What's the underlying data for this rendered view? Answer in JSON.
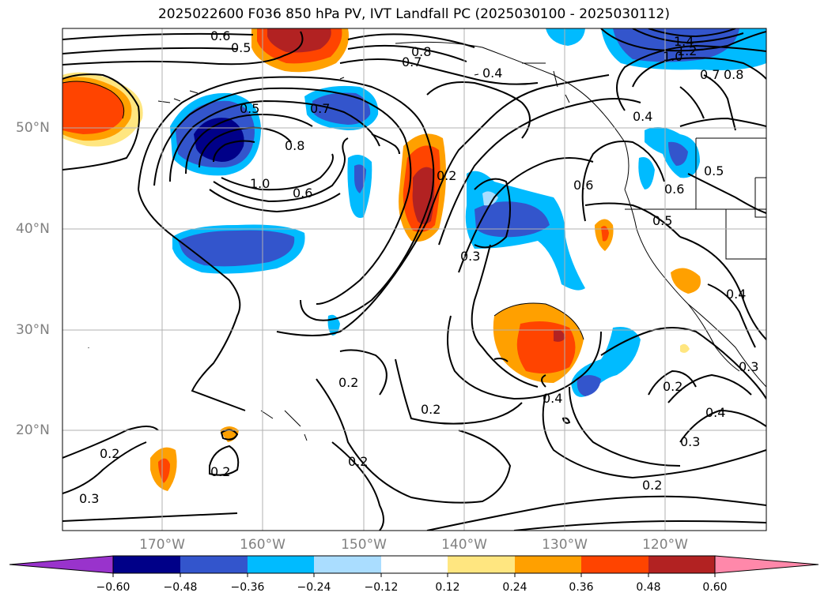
{
  "title": "2025022600 F036 850 hPa PV, IVT Landfall PC (2025030100 - 2025030112)",
  "lat_labels": [
    "50°N",
    "40°N",
    "30°N",
    "20°N"
  ],
  "lon_labels": [
    "170°W",
    "160°W",
    "150°W",
    "140°W",
    "130°W",
    "120°W"
  ],
  "colorbar": {
    "ticks": [
      "−0.60",
      "−0.48",
      "−0.36",
      "−0.24",
      "−0.12",
      "0.12",
      "0.24",
      "0.36",
      "0.48",
      "0.60"
    ],
    "colors": [
      "#9933cc",
      "#000088",
      "#3355cc",
      "#00bbff",
      "#aaddff",
      "#ffffff",
      "#ffe680",
      "#ffa000",
      "#ff4400",
      "#b22222",
      "#ff88aa"
    ]
  },
  "contour_labels": [
    "0.6",
    "0.5",
    "0.8",
    "0.7",
    "0.4",
    "1.4",
    "1.0",
    "1.2",
    "0.7",
    "0.8",
    "0.5",
    "0.7",
    "0.8",
    "1.0",
    "0.6",
    "0.2",
    "0.6",
    "0.4",
    "0.6",
    "0.5",
    "0.5",
    "0.3",
    "0.4",
    "0.2",
    "0.2",
    "0.4",
    "0.2",
    "0.2",
    "0.3",
    "0.2",
    "0.2",
    "0.3",
    "0.4",
    "0.3",
    "0.2"
  ]
}
